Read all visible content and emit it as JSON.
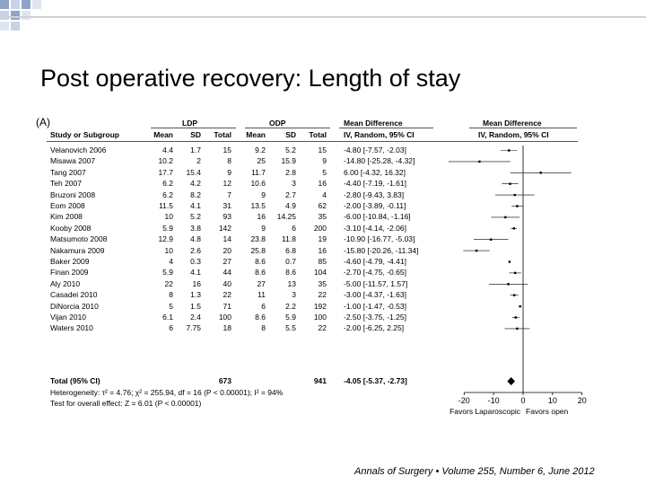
{
  "slide": {
    "title": "Post operative recovery: Length of stay",
    "citation": "Annals of Surgery • Volume 255, Number 6, June 2012"
  },
  "chart_data": {
    "type": "forest",
    "panel_label": "(A)",
    "group_headers": {
      "ldp": "LDP",
      "odp": "ODP",
      "md_text": "Mean Difference",
      "md_plot": "Mean Difference"
    },
    "columns": [
      "Study or Subgroup",
      "Mean",
      "SD",
      "Total",
      "Mean",
      "SD",
      "Total",
      "IV, Random, 95% CI",
      "IV, Random, 95% CI"
    ],
    "studies": [
      {
        "name": "Velanovich 2006",
        "ldp_mean": "4.4",
        "ldp_sd": "1.7",
        "ldp_total": "15",
        "odp_mean": "9.2",
        "odp_sd": "5.2",
        "odp_total": "15",
        "md_text": "-4.80 [-7.57, -2.03]",
        "md": -4.8,
        "lo": -7.57,
        "hi": -2.03
      },
      {
        "name": "Misawa 2007",
        "ldp_mean": "10.2",
        "ldp_sd": "2",
        "ldp_total": "8",
        "odp_mean": "25",
        "odp_sd": "15.9",
        "odp_total": "9",
        "md_text": "-14.80 [-25.28, -4.32]",
        "md": -14.8,
        "lo": -25.28,
        "hi": -4.32
      },
      {
        "name": "Tang 2007",
        "ldp_mean": "17.7",
        "ldp_sd": "15.4",
        "ldp_total": "9",
        "odp_mean": "11.7",
        "odp_sd": "2.8",
        "odp_total": "5",
        "md_text": "6.00 [-4.32, 16.32]",
        "md": 6.0,
        "lo": -4.32,
        "hi": 16.32
      },
      {
        "name": "Teh 2007",
        "ldp_mean": "6.2",
        "ldp_sd": "4.2",
        "ldp_total": "12",
        "odp_mean": "10.6",
        "odp_sd": "3",
        "odp_total": "16",
        "md_text": "-4.40 [-7.19, -1.61]",
        "md": -4.4,
        "lo": -7.19,
        "hi": -1.61
      },
      {
        "name": "Bruzoni 2008",
        "ldp_mean": "6.2",
        "ldp_sd": "8.2",
        "ldp_total": "7",
        "odp_mean": "9",
        "odp_sd": "2.7",
        "odp_total": "4",
        "md_text": "-2.80 [-9.43, 3.83]",
        "md": -2.8,
        "lo": -9.43,
        "hi": 3.83
      },
      {
        "name": "Eom 2008",
        "ldp_mean": "11.5",
        "ldp_sd": "4.1",
        "ldp_total": "31",
        "odp_mean": "13.5",
        "odp_sd": "4.9",
        "odp_total": "62",
        "md_text": "-2.00 [-3.89, -0.11]",
        "md": -2.0,
        "lo": -3.89,
        "hi": -0.11
      },
      {
        "name": "Kim 2008",
        "ldp_mean": "10",
        "ldp_sd": "5.2",
        "ldp_total": "93",
        "odp_mean": "16",
        "odp_sd": "14.25",
        "odp_total": "35",
        "md_text": "-6.00 [-10.84, -1.16]",
        "md": -6.0,
        "lo": -10.84,
        "hi": -1.16
      },
      {
        "name": "Kooby 2008",
        "ldp_mean": "5.9",
        "ldp_sd": "3.8",
        "ldp_total": "142",
        "odp_mean": "9",
        "odp_sd": "6",
        "odp_total": "200",
        "md_text": "-3.10 [-4.14, -2.06]",
        "md": -3.1,
        "lo": -4.14,
        "hi": -2.06
      },
      {
        "name": "Matsumoto 2008",
        "ldp_mean": "12.9",
        "ldp_sd": "4.8",
        "ldp_total": "14",
        "odp_mean": "23.8",
        "odp_sd": "11.8",
        "odp_total": "19",
        "md_text": "-10.90 [-16.77, -5.03]",
        "md": -10.9,
        "lo": -16.77,
        "hi": -5.03
      },
      {
        "name": "Nakamura 2009",
        "ldp_mean": "10",
        "ldp_sd": "2.6",
        "ldp_total": "20",
        "odp_mean": "25.8",
        "odp_sd": "6.8",
        "odp_total": "16",
        "md_text": "-15.80 [-20.26, -11.34]",
        "md": -15.8,
        "lo": -20.26,
        "hi": -11.34
      },
      {
        "name": "Baker 2009",
        "ldp_mean": "4",
        "ldp_sd": "0.3",
        "ldp_total": "27",
        "odp_mean": "8.6",
        "odp_sd": "0.7",
        "odp_total": "85",
        "md_text": "-4.60 [-4.79, -4.41]",
        "md": -4.6,
        "lo": -4.79,
        "hi": -4.41
      },
      {
        "name": "Finan 2009",
        "ldp_mean": "5.9",
        "ldp_sd": "4.1",
        "ldp_total": "44",
        "odp_mean": "8.6",
        "odp_sd": "8.6",
        "odp_total": "104",
        "md_text": "-2.70 [-4.75, -0.65]",
        "md": -2.7,
        "lo": -4.75,
        "hi": -0.65
      },
      {
        "name": "Aly 2010",
        "ldp_mean": "22",
        "ldp_sd": "16",
        "ldp_total": "40",
        "odp_mean": "27",
        "odp_sd": "13",
        "odp_total": "35",
        "md_text": "-5.00 [-11.57, 1.57]",
        "md": -5.0,
        "lo": -11.57,
        "hi": 1.57
      },
      {
        "name": "Casadei 2010",
        "ldp_mean": "8",
        "ldp_sd": "1.3",
        "ldp_total": "22",
        "odp_mean": "11",
        "odp_sd": "3",
        "odp_total": "22",
        "md_text": "-3.00 [-4.37, -1.63]",
        "md": -3.0,
        "lo": -4.37,
        "hi": -1.63
      },
      {
        "name": "DiNorcia 2010",
        "ldp_mean": "5",
        "ldp_sd": "1.5",
        "ldp_total": "71",
        "odp_mean": "6",
        "odp_sd": "2.2",
        "odp_total": "192",
        "md_text": "-1.00 [-1.47, -0.53]",
        "md": -1.0,
        "lo": -1.47,
        "hi": -0.53
      },
      {
        "name": "Vijan 2010",
        "ldp_mean": "6.1",
        "ldp_sd": "2.4",
        "ldp_total": "100",
        "odp_mean": "8.6",
        "odp_sd": "5.9",
        "odp_total": "100",
        "md_text": "-2.50 [-3.75, -1.25]",
        "md": -2.5,
        "lo": -3.75,
        "hi": -1.25
      },
      {
        "name": "Waters 2010",
        "ldp_mean": "6",
        "ldp_sd": "7.75",
        "ldp_total": "18",
        "odp_mean": "8",
        "odp_sd": "5.5",
        "odp_total": "22",
        "md_text": "-2.00 [-6.25, 2.25]",
        "md": -2.0,
        "lo": -6.25,
        "hi": 2.25
      }
    ],
    "total": {
      "name": "Total (95% CI)",
      "ldp_total": "673",
      "odp_total": "941",
      "md_text": "-4.05 [-5.37, -2.73]",
      "md": -4.05,
      "lo": -5.37,
      "hi": -2.73
    },
    "heterogeneity": "Heterogeneity: τ² = 4.76; χ² = 255.94, df = 16 (P < 0.00001); I² = 94%",
    "overall_effect": "Test for overall effect: Z = 6.01 (P < 0.00001)",
    "x_ticks": [
      -20,
      -10,
      0,
      10,
      20
    ],
    "x_tick_labels": [
      "-20",
      "-10",
      "0",
      "10",
      "20"
    ],
    "xlim": [
      -28,
      28
    ],
    "favors_left": "Favors Laparoscopic",
    "favors_right": "Favors open",
    "colors": {
      "ink": "#000000",
      "rule": "#555555"
    }
  }
}
